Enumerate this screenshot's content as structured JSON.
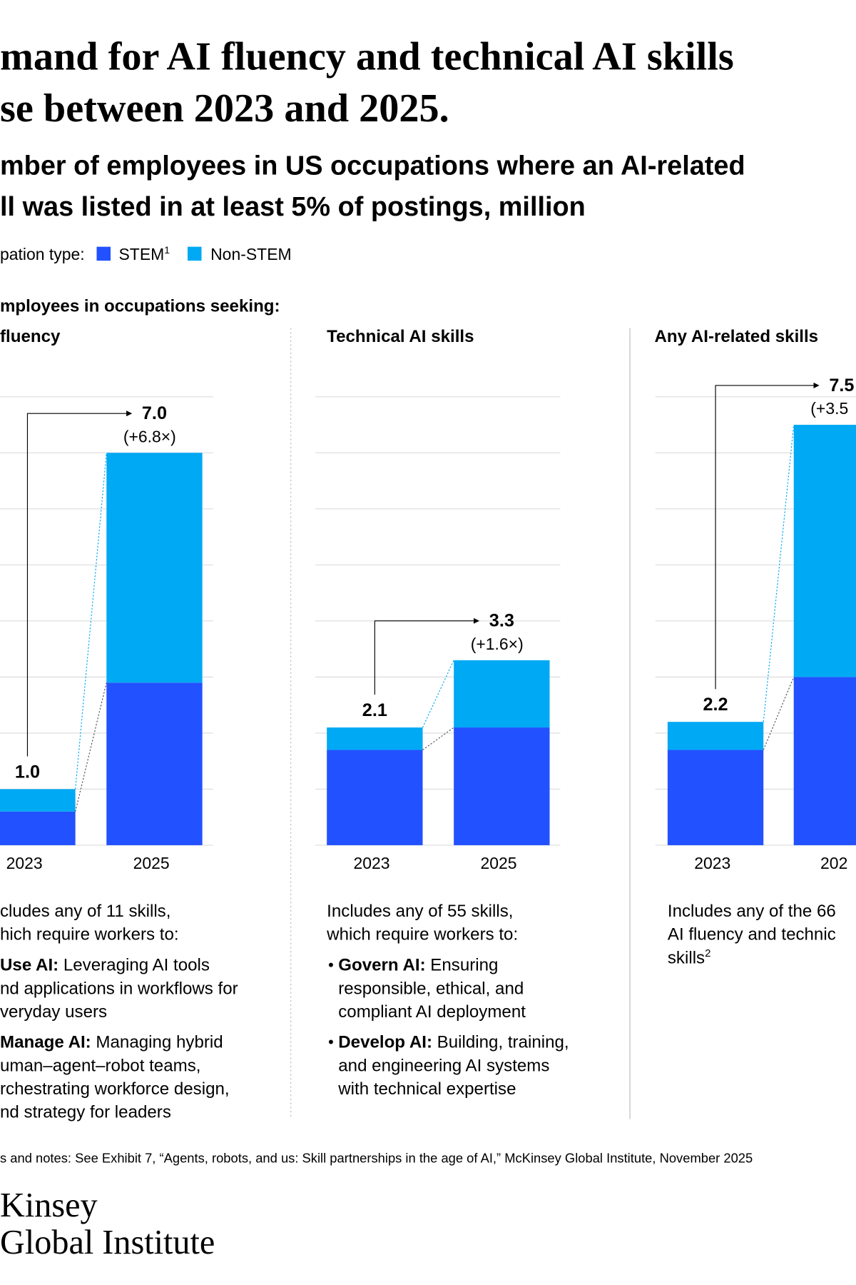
{
  "header": {
    "title": [
      "mand for AI fluency and technical AI skills",
      "se between 2023 and 2025."
    ],
    "subtitle": [
      "mber of employees in US occupations where an AI-related",
      "ll was listed in at least 5% of postings, million"
    ],
    "legend_label": "pation type:",
    "section_label": "mployees in occupations seeking:"
  },
  "chart_data": [
    {
      "type": "bar",
      "stacked": true,
      "grid": true,
      "title": "fluency",
      "categories": [
        "2023",
        "2025"
      ],
      "series": [
        {
          "name": "STEM",
          "name_note": "1",
          "color": "#2251ff",
          "values": [
            0.6,
            2.9
          ]
        },
        {
          "name": "Non-STEM",
          "color": "#00a9f4",
          "values": [
            0.4,
            4.1
          ]
        }
      ],
      "totals": {
        "values": [
          1,
          7
        ],
        "value_labels": [
          "1.0",
          "7.0"
        ]
      },
      "change_label": "(+6.8×)",
      "ylim": [
        0,
        8
      ],
      "yticks": [
        0,
        1,
        2,
        3,
        4,
        5,
        6,
        7,
        8
      ],
      "notes": {
        "intro": [
          "cludes any of 11 skills,",
          "hich require workers to:"
        ],
        "bullets": [
          {
            "lead": "Use AI:",
            "lines": [
              " Leveraging AI tools",
              "nd applications in workflows for",
              "veryday users"
            ]
          },
          {
            "lead": "Manage AI:",
            "lines": [
              " Managing hybrid",
              "uman–agent–robot teams,",
              "rchestrating workforce design,",
              "nd strategy for leaders"
            ]
          }
        ]
      }
    },
    {
      "type": "bar",
      "stacked": true,
      "grid": true,
      "title": "Technical AI skills",
      "categories": [
        "2023",
        "2025"
      ],
      "series": [
        {
          "name": "STEM",
          "color": "#2251ff",
          "values": [
            1.7,
            2.1
          ]
        },
        {
          "name": "Non-STEM",
          "color": "#00a9f4",
          "values": [
            0.4,
            1.2
          ]
        }
      ],
      "totals": {
        "values": [
          2.1,
          3.3
        ]
      },
      "change_label": "(+1.6×)",
      "ylim": [
        0,
        8
      ],
      "yticks": [
        0,
        1,
        2,
        3,
        4,
        5,
        6,
        7,
        8
      ],
      "notes": {
        "intro": [
          "Includes any of 55 skills,",
          "which require workers to:"
        ],
        "bullets": [
          {
            "lead": "Govern AI:",
            "lines": [
              " Ensuring",
              "responsible, ethical, and",
              "compliant AI deployment"
            ]
          },
          {
            "lead": "Develop AI:",
            "lines": [
              " Building, training,",
              "and engineering AI systems",
              "with technical expertise"
            ]
          }
        ]
      }
    },
    {
      "type": "bar",
      "stacked": true,
      "grid": true,
      "title": "Any AI-related skills",
      "categories": [
        "2023",
        "202"
      ],
      "series": [
        {
          "name": "STEM",
          "color": "#2251ff",
          "values": [
            1.7,
            3.0
          ]
        },
        {
          "name": "Non-STEM",
          "color": "#00a9f4",
          "values": [
            0.5,
            4.5
          ]
        }
      ],
      "totals": {
        "values": [
          2.2,
          7.5
        ]
      },
      "change_label": "(+3.5",
      "ylim": [
        0,
        8
      ],
      "yticks": [
        0,
        1,
        2,
        3,
        4,
        5,
        6,
        7,
        8
      ],
      "notes": {
        "intro": [
          "Includes any of the 66",
          "AI fluency and technic",
          "skills"
        ],
        "intro_note": "2",
        "bullets": []
      }
    }
  ],
  "footer": {
    "source": "s and notes: See Exhibit 7, “Agents, robots, and us: Skill partnerships in the age of AI,” McKinsey Global Institute, November 2025",
    "logo": [
      "Kinsey",
      "Global Institute"
    ]
  }
}
